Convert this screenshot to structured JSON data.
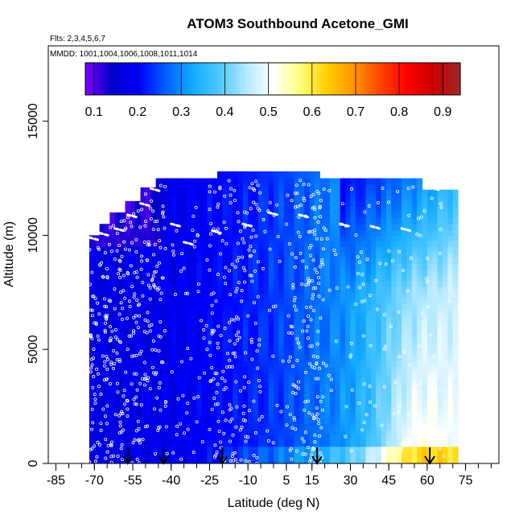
{
  "chart_data": {
    "type": "heatmap",
    "title": "ATOM3 Southbound Acetone_GMI",
    "subtitle_flights": "Flts: 2,3,4,5,6,7",
    "subtitle_dates": "MMDD: 1001,1004,1006,1008,1011,1014",
    "xlabel": "Latitude (deg N)",
    "ylabel": "Altitude (m)",
    "xlim": [
      -85,
      85
    ],
    "ylim": [
      0,
      17500
    ],
    "x_ticks": [
      -85,
      -70,
      -55,
      -40,
      -25,
      -10,
      5,
      15,
      30,
      45,
      60,
      75
    ],
    "x_tick_labels": [
      "-85",
      "-70",
      "-55",
      "-40",
      "-25",
      "-10",
      "5",
      "15",
      "30",
      "45",
      "60",
      "75"
    ],
    "y_ticks": [
      0,
      5000,
      10000,
      15000
    ],
    "y_tick_labels": [
      "0",
      "5000",
      "10000",
      "15000"
    ],
    "colorbar": {
      "range": [
        0.08,
        0.94
      ],
      "tick_values": [
        0.1,
        0.2,
        0.3,
        0.4,
        0.5,
        0.6,
        0.7,
        0.8,
        0.9
      ],
      "tick_labels": [
        "0.1",
        "0.2",
        "0.3",
        "0.4",
        "0.5",
        "0.6",
        "0.7",
        "0.8",
        "0.9"
      ],
      "colors": [
        "#7f00ff",
        "#0000c8",
        "#0000ff",
        "#0060ff",
        "#14aaff",
        "#50c8ff",
        "#b0e8ff",
        "#ffffff",
        "#ffff80",
        "#ffd200",
        "#ff9600",
        "#ff4600",
        "#ff0000",
        "#c80000",
        "#a02828"
      ]
    },
    "field_summary": "Low acetone (about 0.15-0.25) over the southern hemisphere, rising northward to about 0.45-0.55 near 30-60N in the lower-mid troposphere.",
    "flight_boundary_markers_lat": [
      -57,
      -43,
      -20,
      17,
      61
    ],
    "grid": false,
    "legend_position": "top-inside"
  }
}
